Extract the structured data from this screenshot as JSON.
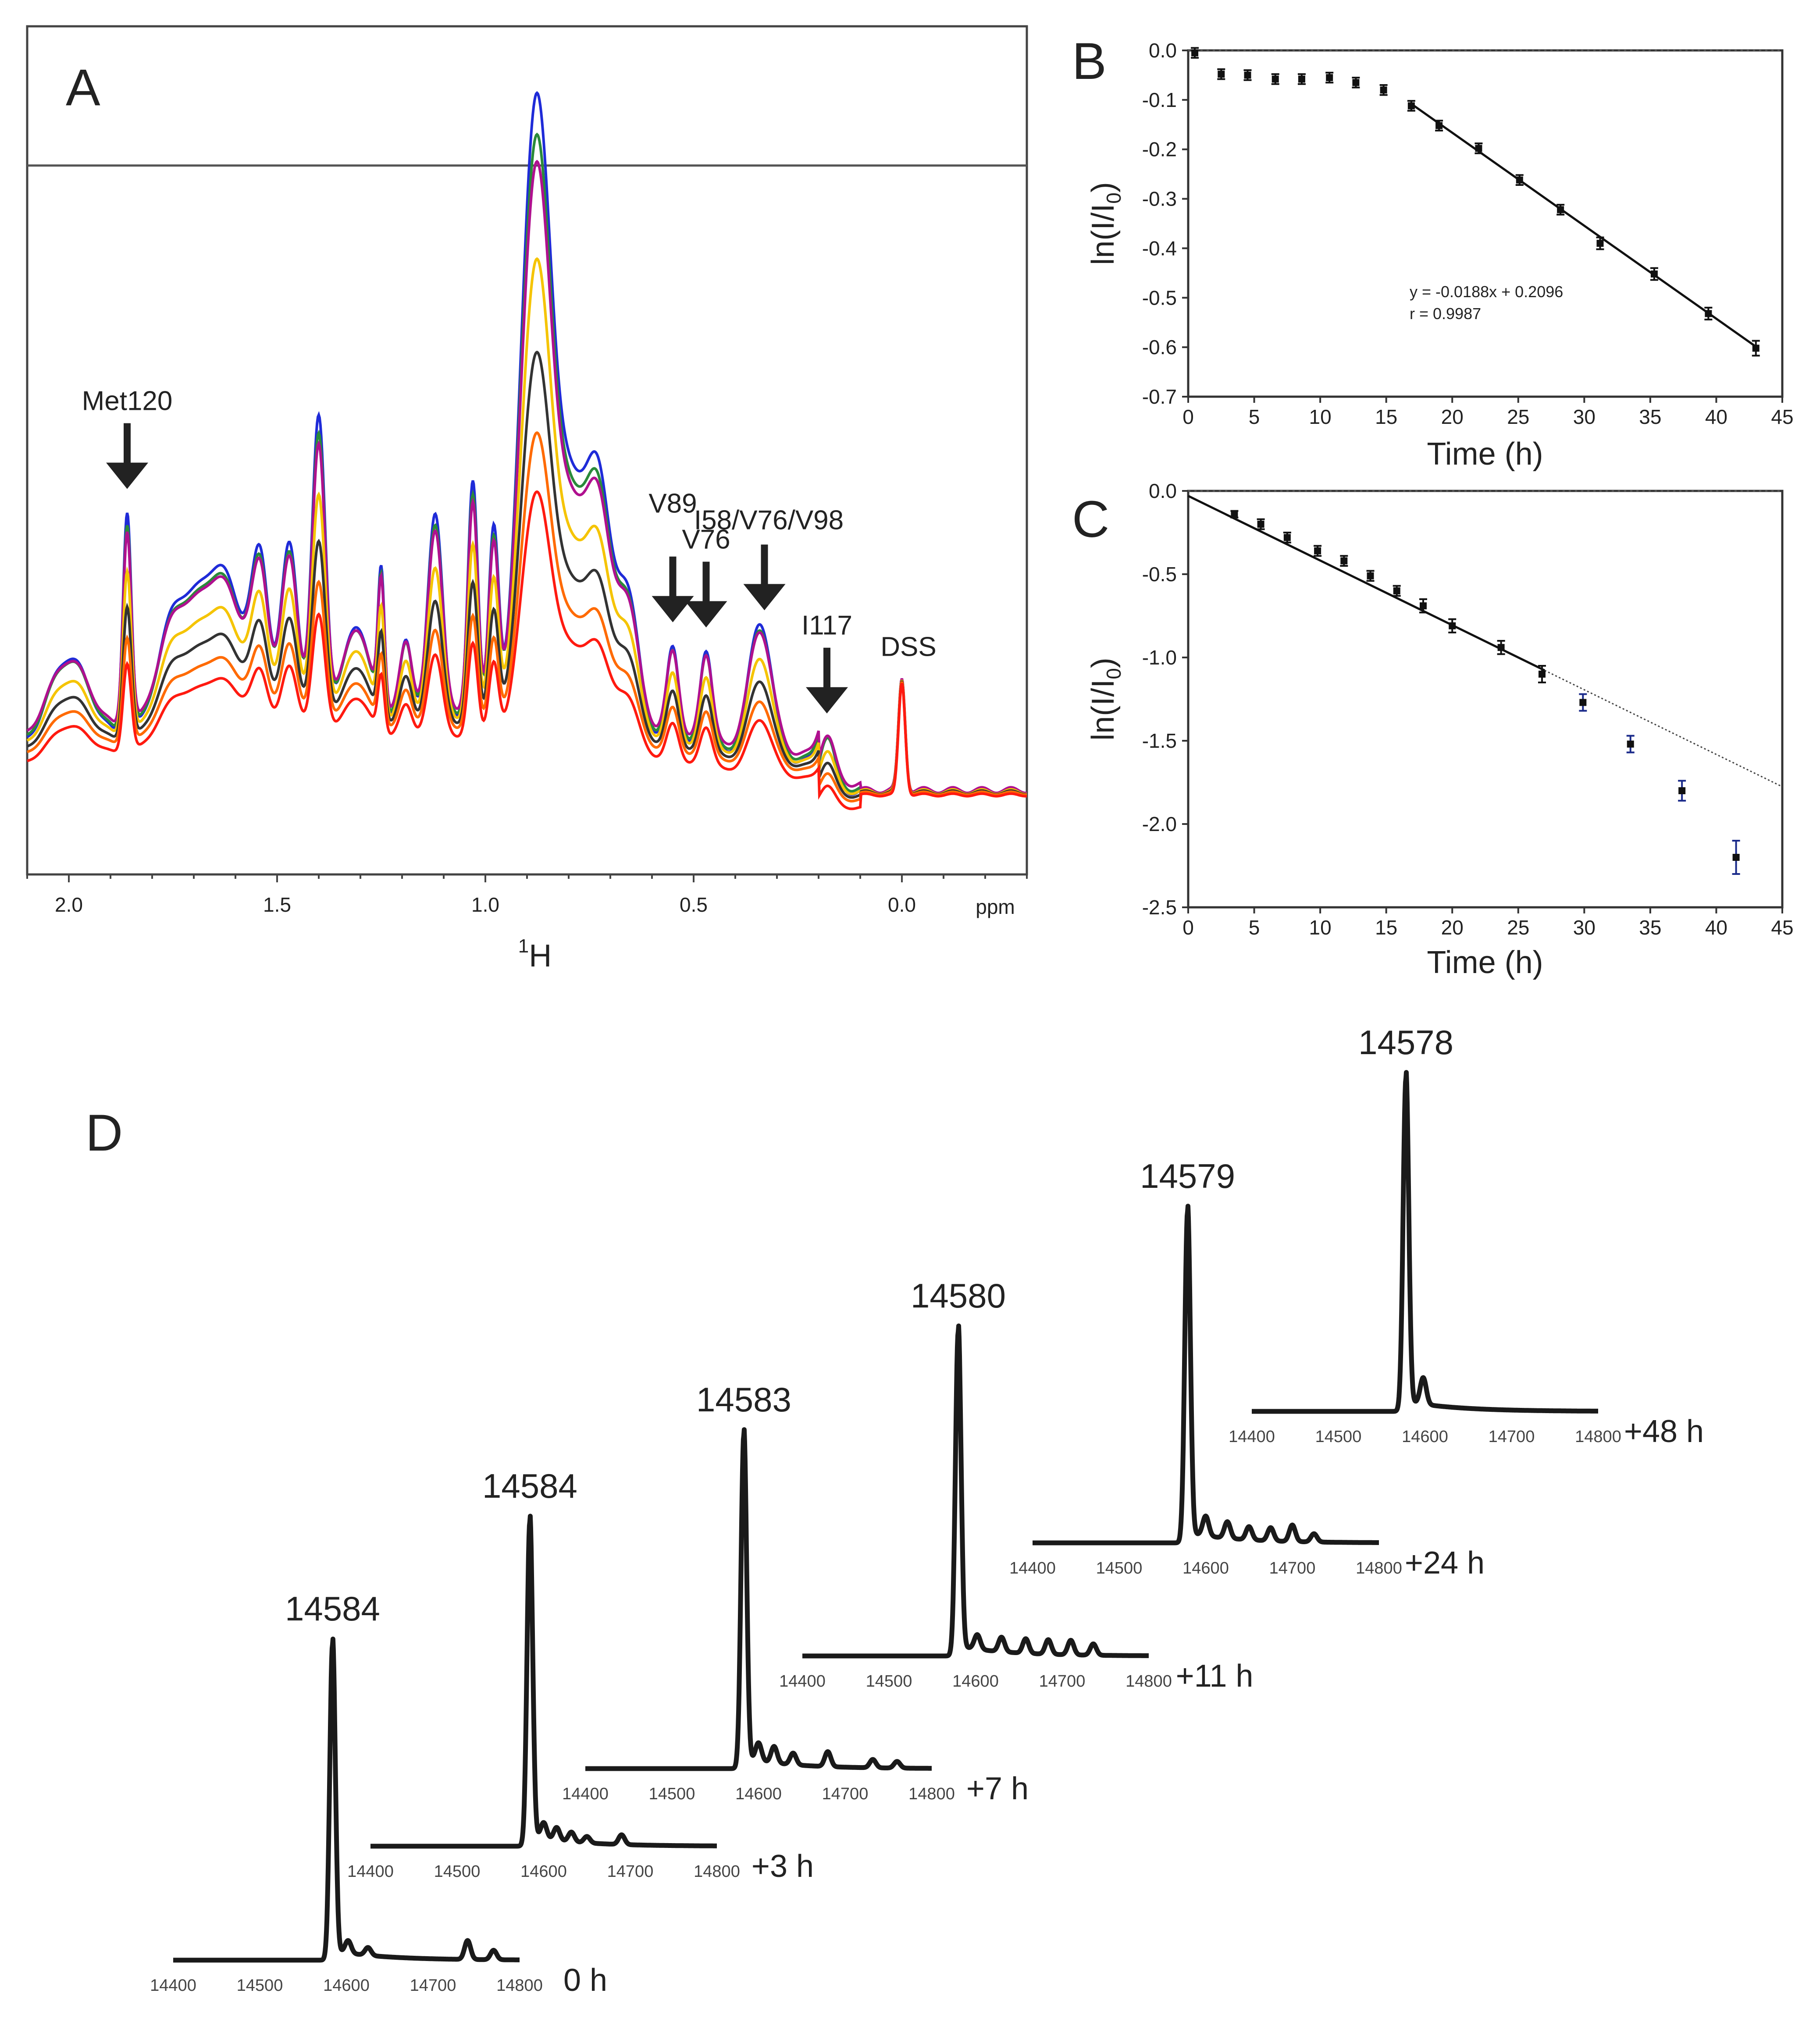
{
  "colors": {
    "blue": "#1f2bd8",
    "green": "#2a8a3a",
    "magenta": "#b0108f",
    "yellow": "#f5c400",
    "black": "#333333",
    "orange": "#ff6a00",
    "red": "#ff1a10",
    "ms_trace": "#1a1a1a",
    "error_blue": "#1a2a8a"
  },
  "panel_a": {
    "letter": "A",
    "type": "line",
    "xlabel_sup": "1",
    "xlabel": "H",
    "unit_label": "ppm",
    "x_range": [
      2.1,
      -0.3
    ],
    "y_range": [
      0,
      1
    ],
    "x_ticks": [
      {
        "value": 2.0,
        "label": "2.0"
      },
      {
        "value": 1.5,
        "label": "1.5"
      },
      {
        "value": 1.0,
        "label": "1.0"
      },
      {
        "value": 0.5,
        "label": "0.5"
      },
      {
        "value": 0.0,
        "label": "0.0"
      }
    ],
    "hline_level": 0.82,
    "annotations": [
      {
        "label": "Met120",
        "x": 1.86,
        "arrow_tip": 0.48
      },
      {
        "label": "V89",
        "x": 0.55,
        "arrow_tip": 0.26
      },
      {
        "label": "V76",
        "x": 0.47,
        "arrow_tip": 0.26
      },
      {
        "label": "I58/V76/V98",
        "x": 0.33,
        "arrow_tip": 0.33
      },
      {
        "label": "I117",
        "x": 0.18,
        "arrow_tip": 0.13
      },
      {
        "label": "DSS",
        "x": 0.0,
        "arrow_tip": null
      }
    ],
    "series_order": [
      "blue",
      "green",
      "magenta",
      "yellow",
      "black",
      "orange",
      "red"
    ],
    "peaks": [
      {
        "x": 2.0,
        "height": 0.11,
        "width": 0.05
      },
      {
        "x": 1.86,
        "height": 0.28,
        "width": 0.01
      },
      {
        "x": 1.75,
        "height": 0.12,
        "width": 0.04
      },
      {
        "x": 1.64,
        "height": 0.2,
        "width": 0.06
      },
      {
        "x": 1.54,
        "height": 0.17,
        "width": 0.02
      },
      {
        "x": 1.47,
        "height": 0.22,
        "width": 0.02
      },
      {
        "x": 1.4,
        "height": 0.38,
        "width": 0.016
      },
      {
        "x": 1.31,
        "height": 0.12,
        "width": 0.03
      },
      {
        "x": 1.25,
        "height": 0.18,
        "width": 0.008
      },
      {
        "x": 1.19,
        "height": 0.1,
        "width": 0.015
      },
      {
        "x": 1.12,
        "height": 0.26,
        "width": 0.018
      },
      {
        "x": 1.03,
        "height": 0.31,
        "width": 0.012
      },
      {
        "x": 0.98,
        "height": 0.24,
        "width": 0.012
      },
      {
        "x": 0.88,
        "height": 0.76,
        "width": 0.035
      },
      {
        "x": 0.8,
        "height": 0.28,
        "width": 0.04
      },
      {
        "x": 0.73,
        "height": 0.28,
        "width": 0.03
      },
      {
        "x": 0.66,
        "height": 0.18,
        "width": 0.03
      },
      {
        "x": 0.55,
        "height": 0.13,
        "width": 0.015
      },
      {
        "x": 0.47,
        "height": 0.13,
        "width": 0.015
      },
      {
        "x": 0.34,
        "height": 0.17,
        "width": 0.028
      },
      {
        "x": 0.18,
        "height": 0.07,
        "width": 0.018
      },
      {
        "x": 0.0,
        "height": 0.14,
        "width": 0.008
      }
    ]
  },
  "panel_b": {
    "letter": "B",
    "type": "scatter",
    "xlabel": "Time (h)",
    "ylabel": "ln(I/I",
    "ylabel_sub": "0",
    "ylabel_end": ")",
    "xlim": [
      0,
      45
    ],
    "ylim": [
      -0.7,
      0.0
    ],
    "x_ticks": [
      "0",
      "5",
      "10",
      "15",
      "20",
      "25",
      "30",
      "35",
      "40",
      "45"
    ],
    "y_ticks": [
      "0.0",
      "-0.1",
      "-0.2",
      "-0.3",
      "-0.4",
      "-0.5",
      "-0.6",
      "-0.7"
    ],
    "x": [
      0.5,
      2.5,
      4.5,
      6.6,
      8.6,
      10.7,
      12.7,
      14.8,
      16.9,
      19.0,
      22.0,
      25.1,
      28.2,
      31.2,
      35.3,
      39.4,
      43.0
    ],
    "y": [
      -0.005,
      -0.048,
      -0.05,
      -0.058,
      -0.058,
      -0.055,
      -0.065,
      -0.08,
      -0.112,
      -0.152,
      -0.198,
      -0.262,
      -0.322,
      -0.39,
      -0.452,
      -0.532,
      -0.602
    ],
    "errors": [
      0.01,
      0.01,
      0.01,
      0.01,
      0.01,
      0.01,
      0.01,
      0.01,
      0.01,
      0.01,
      0.01,
      0.01,
      0.01,
      0.012,
      0.012,
      0.012,
      0.015
    ],
    "fit": {
      "slope": -0.0188,
      "intercept": 0.2096,
      "x_from": 16.9,
      "x_to": 43.0
    },
    "fit_label": "y = -0.0188x + 0.2096",
    "r_label": "r = 0.9987"
  },
  "panel_c": {
    "letter": "C",
    "type": "scatter",
    "xlabel": "Time (h)",
    "ylabel": "ln(I/I",
    "ylabel_sub": "0",
    "ylabel_end": ")",
    "xlim": [
      0,
      45
    ],
    "ylim": [
      -2.5,
      0.0
    ],
    "x_ticks": [
      "0",
      "5",
      "10",
      "15",
      "20",
      "25",
      "30",
      "35",
      "40",
      "45"
    ],
    "y_ticks": [
      "0.0",
      "-0.5",
      "-1.0",
      "-1.5",
      "-2.0",
      "-2.5"
    ],
    "x": [
      3.5,
      5.5,
      7.5,
      9.8,
      11.8,
      13.8,
      15.8,
      17.8,
      20.0,
      23.7,
      26.8,
      29.9,
      33.5,
      37.4,
      41.5
    ],
    "y": [
      -0.14,
      -0.2,
      -0.28,
      -0.36,
      -0.42,
      -0.51,
      -0.6,
      -0.69,
      -0.81,
      -0.94,
      -1.1,
      -1.27,
      -1.52,
      -1.8,
      -2.2
    ],
    "errors": [
      0.02,
      0.03,
      0.03,
      0.03,
      0.03,
      0.03,
      0.03,
      0.04,
      0.04,
      0.04,
      0.05,
      0.05,
      0.05,
      0.06,
      0.1
    ],
    "fit": {
      "slope": -0.0388,
      "intercept": -0.03,
      "x_from": 0,
      "x_to": 45,
      "solid_to": 27
    }
  },
  "panel_d": {
    "letter": "D",
    "type": "line",
    "x_range": [
      14400,
      14800
    ],
    "x_tick_labels": [
      "14400",
      "14500",
      "14600",
      "14700",
      "14800"
    ],
    "spectra": [
      {
        "time": "0 h",
        "peak_label": "14584",
        "peak_mass": 14584,
        "side_peaks": [
          [
            14602,
            0.04
          ],
          [
            14625,
            0.025
          ],
          [
            14740,
            0.06
          ],
          [
            14770,
            0.03
          ]
        ]
      },
      {
        "time": "+3 h",
        "peak_label": "14584",
        "peak_mass": 14584,
        "side_peaks": [
          [
            14600,
            0.05
          ],
          [
            14615,
            0.04
          ],
          [
            14632,
            0.03
          ],
          [
            14650,
            0.02
          ],
          [
            14690,
            0.03
          ]
        ]
      },
      {
        "time": "+7 h",
        "peak_label": "14583",
        "peak_mass": 14583,
        "side_peaks": [
          [
            14600,
            0.055
          ],
          [
            14618,
            0.05
          ],
          [
            14640,
            0.035
          ],
          [
            14680,
            0.045
          ],
          [
            14732,
            0.025
          ],
          [
            14760,
            0.02
          ]
        ]
      },
      {
        "time": "+11 h",
        "peak_label": "14580",
        "peak_mass": 14580,
        "side_peaks": [
          [
            14602,
            0.045
          ],
          [
            14630,
            0.045
          ],
          [
            14658,
            0.045
          ],
          [
            14684,
            0.045
          ],
          [
            14710,
            0.045
          ],
          [
            14736,
            0.035
          ]
        ]
      },
      {
        "time": "+24 h",
        "peak_label": "14579",
        "peak_mass": 14579,
        "side_peaks": [
          [
            14600,
            0.06
          ],
          [
            14625,
            0.05
          ],
          [
            14650,
            0.04
          ],
          [
            14675,
            0.04
          ],
          [
            14700,
            0.05
          ],
          [
            14725,
            0.025
          ]
        ]
      },
      {
        "time": "+48 h",
        "peak_label": "14578",
        "peak_mass": 14578,
        "side_peaks": [
          [
            14598,
            0.08
          ]
        ]
      }
    ]
  }
}
